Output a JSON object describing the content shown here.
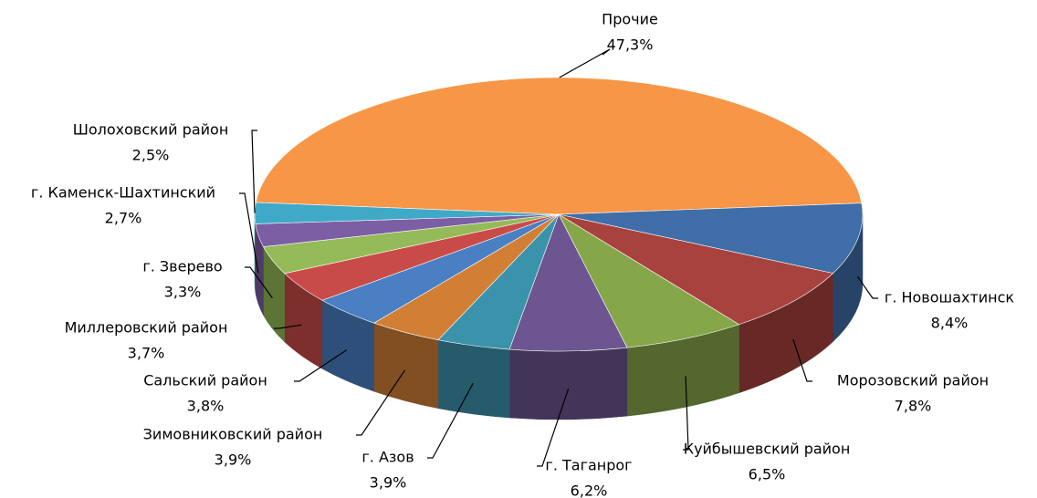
{
  "chart_data": {
    "type": "pie",
    "categories": [
      "Прочие",
      "г. Новошахтинск",
      "Морозовский район",
      "Куйбышевский район",
      "г. Таганрог",
      "г. Азов",
      "Зимовниковский район",
      "Сальский район",
      "Миллеровский район",
      "г. Зверево",
      "г. Каменск-Шахтинский",
      "Шолоховский район"
    ],
    "values": [
      47.3,
      8.4,
      7.8,
      6.5,
      6.2,
      3.9,
      3.9,
      3.8,
      3.7,
      3.3,
      2.7,
      2.5
    ],
    "value_labels": [
      "47,3%",
      "8,4%",
      "7,8%",
      "6,5%",
      "6,2%",
      "3,9%",
      "3,9%",
      "3,8%",
      "3,7%",
      "3,3%",
      "2,7%",
      "2,5%"
    ],
    "colors": [
      "#f79646",
      "#3f6ea8",
      "#a8423e",
      "#86a64a",
      "#6c5590",
      "#3b93ab",
      "#d07f35",
      "#4a7fc4",
      "#c94b48",
      "#94bb57",
      "#7c5ea5",
      "#40a9c7"
    ]
  }
}
